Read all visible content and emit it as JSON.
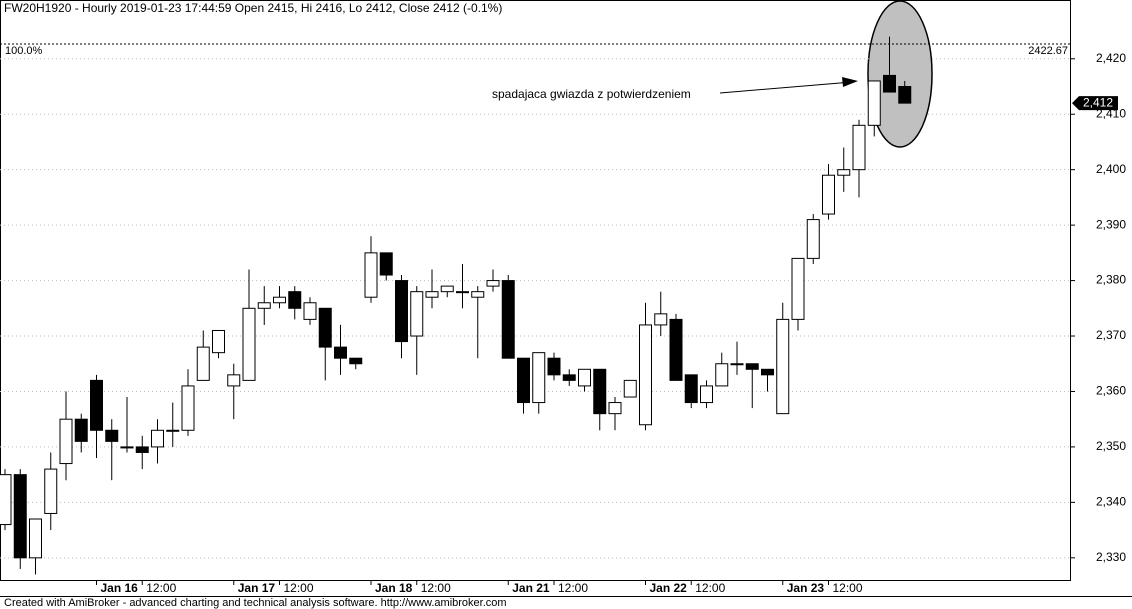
{
  "chart_data": {
    "type": "candlestick",
    "title": "FW20H1920 - Hourly 2019-01-23 17:44:59 Open 2415, Hi 2416, Lo 2412, Close 2412 (-0.1%)",
    "x": [
      null,
      null,
      null,
      null,
      null,
      null,
      "Jan 16",
      null,
      null,
      "12:00",
      null,
      null,
      null,
      null,
      null,
      "Jan 17",
      null,
      null,
      "12:00",
      null,
      null,
      null,
      null,
      null,
      "Jan 18",
      null,
      null,
      "12:00",
      null,
      null,
      null,
      null,
      null,
      "Jan 21",
      null,
      null,
      "12:00",
      null,
      null,
      null,
      null,
      null,
      "Jan 22",
      null,
      null,
      "12:00",
      null,
      null,
      null,
      null,
      null,
      "Jan 23",
      null,
      null,
      "12:00",
      null,
      null,
      null,
      null,
      null
    ],
    "open": [
      2336,
      2345,
      2330,
      2338,
      2347,
      2355,
      2362,
      2353,
      2350,
      2350,
      2350,
      2353,
      2353,
      2362,
      2367,
      2361,
      2362,
      2375,
      2376,
      2378,
      2373,
      2375,
      2368,
      2366,
      2377,
      2385,
      2380,
      2370,
      2377,
      2378,
      2378,
      2377,
      2379,
      2380,
      2366,
      2358,
      2366,
      2363,
      2361,
      2364,
      2356,
      2359,
      2354,
      2372,
      2373,
      2363,
      2358,
      2361,
      2365,
      2365,
      2364,
      2356,
      2373,
      2384,
      2392,
      2399,
      2400,
      2408,
      2417,
      2415
    ],
    "high": [
      2346,
      2346,
      2337,
      2349,
      2360,
      2356,
      2363,
      2355,
      2359,
      2352,
      2355,
      2358,
      2364,
      2371,
      2371,
      2365,
      2382,
      2379,
      2379,
      2379,
      2377,
      2375,
      2372,
      2366,
      2388,
      2385,
      2381,
      2379,
      2382,
      2379,
      2383,
      2379,
      2382,
      2381,
      2366,
      2367,
      2367,
      2364,
      2364,
      2364,
      2359,
      2362,
      2376,
      2378,
      2374,
      2363,
      2362,
      2367,
      2369,
      2365,
      2364,
      2376,
      2384,
      2392,
      2401,
      2404,
      2409,
      2416,
      2424,
      2416
    ],
    "low": [
      2335,
      2328,
      2327,
      2335,
      2344,
      2349,
      2348,
      2344,
      2349,
      2346,
      2347,
      2350,
      2352,
      2362,
      2366,
      2355,
      2362,
      2372,
      2375,
      2373,
      2372,
      2362,
      2363,
      2364,
      2376,
      2380,
      2366,
      2363,
      2375,
      2377,
      2375,
      2366,
      2378,
      2366,
      2356,
      2356,
      2362,
      2361,
      2360,
      2353,
      2353,
      2359,
      2353,
      2370,
      2362,
      2357,
      2357,
      2361,
      2363,
      2357,
      2360,
      2356,
      2371,
      2383,
      2391,
      2396,
      2395,
      2406,
      2414,
      2412
    ],
    "close": [
      2345,
      2330,
      2337,
      2346,
      2355,
      2351,
      2353,
      2351,
      2350,
      2349,
      2353,
      2353,
      2361,
      2368,
      2371,
      2363,
      2375,
      2376,
      2377,
      2375,
      2376,
      2368,
      2366,
      2365,
      2385,
      2381,
      2369,
      2378,
      2378,
      2379,
      2378,
      2378,
      2380,
      2366,
      2358,
      2367,
      2363,
      2362,
      2364,
      2356,
      2358,
      2362,
      2372,
      2374,
      2362,
      2358,
      2361,
      2365,
      2365,
      2364,
      2363,
      2373,
      2384,
      2391,
      2399,
      2400,
      2408,
      2416,
      2414,
      2412
    ],
    "ylim": [
      2326,
      2430.6
    ],
    "yticks": [
      {
        "value": 2330,
        "label": "2,330"
      },
      {
        "value": 2340,
        "label": "2,340"
      },
      {
        "value": 2350,
        "label": "2,350"
      },
      {
        "value": 2360,
        "label": "2,360"
      },
      {
        "value": 2370,
        "label": "2,370"
      },
      {
        "value": 2380,
        "label": "2,380"
      },
      {
        "value": 2390,
        "label": "2,390"
      },
      {
        "value": 2400,
        "label": "2,400"
      },
      {
        "value": 2410,
        "label": "2,410"
      },
      {
        "value": 2420,
        "label": "2,420"
      }
    ],
    "grid": true,
    "level": 2422.67,
    "level_label": "100.0%",
    "last_price": {
      "value": 2412,
      "label": "2,412"
    },
    "annotation": "spadajaca gwiazda z potwierdzeniem",
    "footer": "Created with AmiBroker - advanced charting and technical analysis software. http://www.amibroker.com"
  }
}
